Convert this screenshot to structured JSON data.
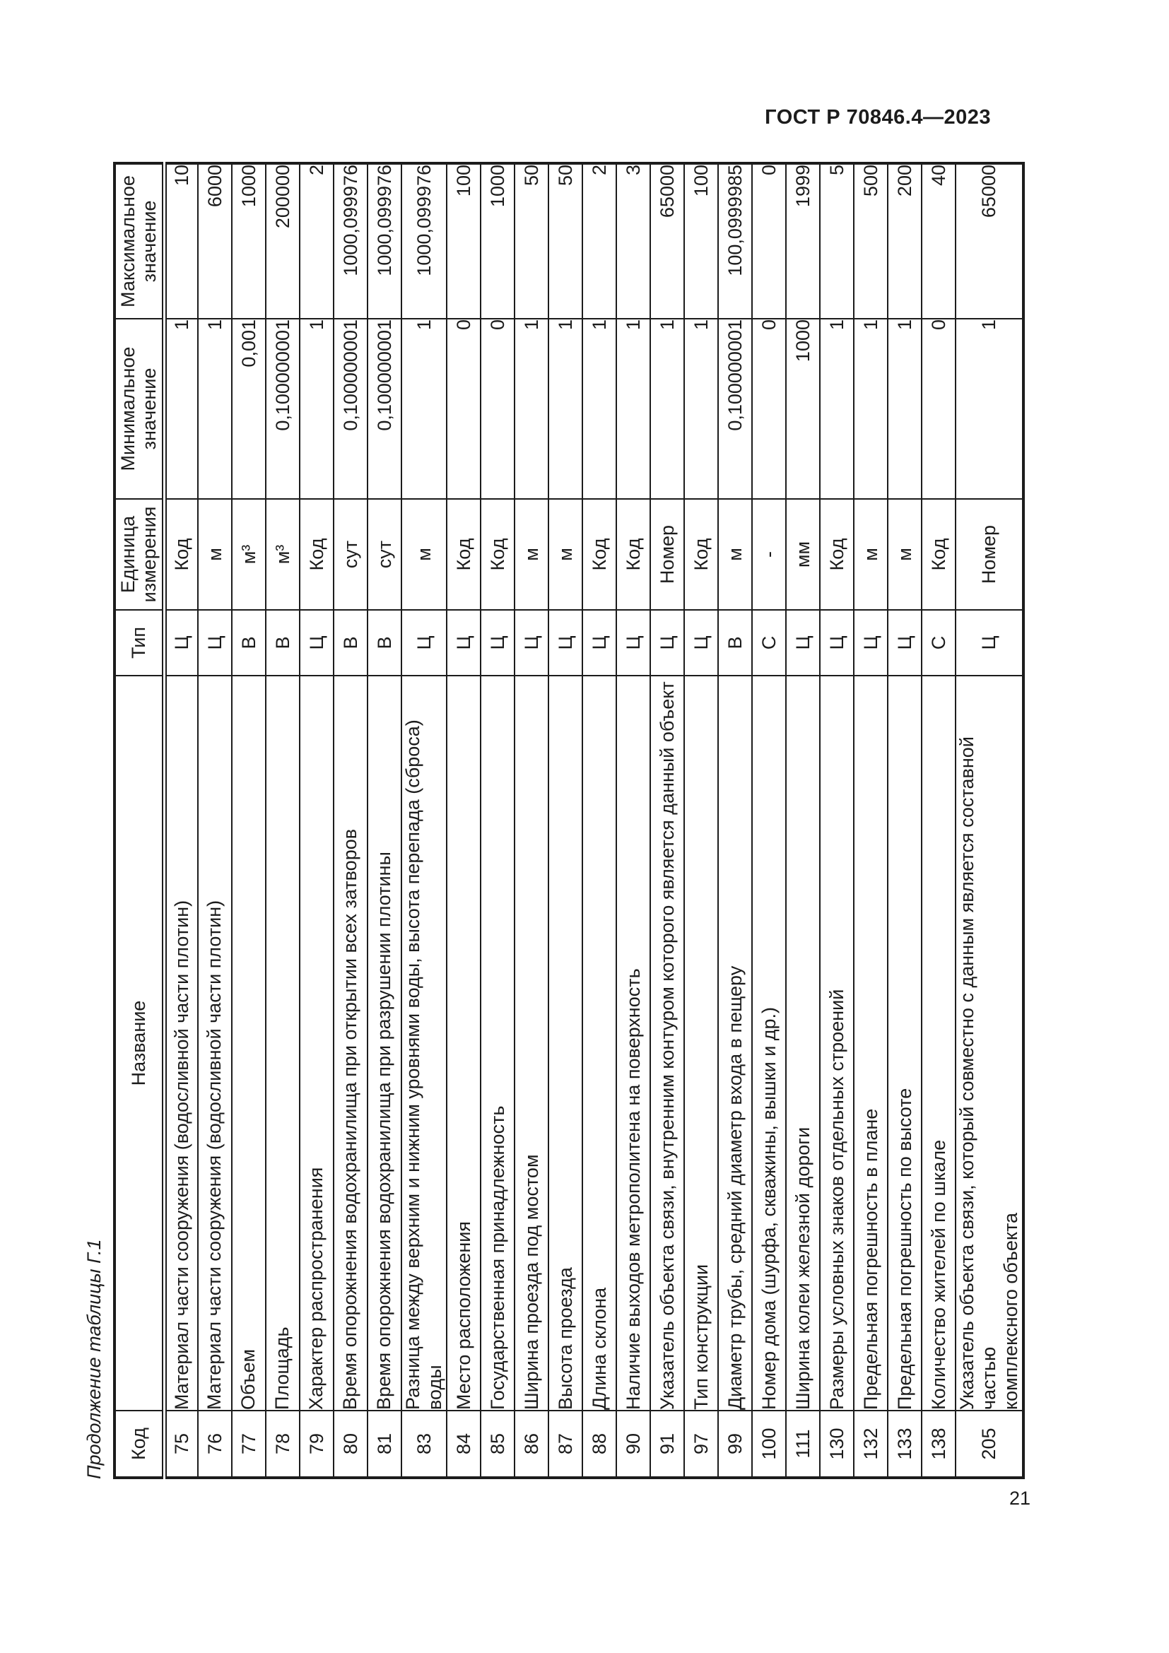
{
  "page": {
    "standard_ref": "ГОСТ Р 70846.4—2023",
    "page_number": "21",
    "table_caption": "Продолжение таблицы Г.1"
  },
  "table": {
    "headers": {
      "code": "Код",
      "name": "Название",
      "type": "Тип",
      "unit": "Единица\nизмерения",
      "min": "Минимальное\nзначение",
      "max": "Максимальное\nзначение"
    },
    "rows": [
      {
        "code": "75",
        "name": "Материал части сооружения (водосливной части плотин)",
        "type": "Ц",
        "unit": "Код",
        "min": "1",
        "max": "10"
      },
      {
        "code": "76",
        "name": "Материал части сооружения (водосливной части плотин)",
        "type": "Ц",
        "unit": "м",
        "min": "1",
        "max": "6000"
      },
      {
        "code": "77",
        "name": "Объем",
        "type": "В",
        "unit": "м³",
        "min": "0,001",
        "max": "1000"
      },
      {
        "code": "78",
        "name": "Площадь",
        "type": "В",
        "unit": "м³",
        "min": "0,100000001",
        "max": "200000"
      },
      {
        "code": "79",
        "name": "Характер распространения",
        "type": "Ц",
        "unit": "Код",
        "min": "1",
        "max": "2"
      },
      {
        "code": "80",
        "name": "Время опорожнения водохранилища при открытии всех затворов",
        "type": "В",
        "unit": "сут",
        "min": "0,100000001",
        "max": "1000,099976"
      },
      {
        "code": "81",
        "name": "Время опорожнения водохранилища при разрушении плотины",
        "type": "В",
        "unit": "сут",
        "min": "0,100000001",
        "max": "1000,099976"
      },
      {
        "code": "83",
        "name": "Разница между верхним и нижним уровнями воды, высота перепада (сброса) воды",
        "type": "Ц",
        "unit": "м",
        "min": "1",
        "max": "1000,099976"
      },
      {
        "code": "84",
        "name": "Место расположения",
        "type": "Ц",
        "unit": "Код",
        "min": "0",
        "max": "100"
      },
      {
        "code": "85",
        "name": "Государственная принадлежность",
        "type": "Ц",
        "unit": "Код",
        "min": "0",
        "max": "1000"
      },
      {
        "code": "86",
        "name": "Ширина проезда под мостом",
        "type": "Ц",
        "unit": "м",
        "min": "1",
        "max": "50"
      },
      {
        "code": "87",
        "name": "Высота проезда",
        "type": "Ц",
        "unit": "м",
        "min": "1",
        "max": "50"
      },
      {
        "code": "88",
        "name": "Длина склона",
        "type": "Ц",
        "unit": "Код",
        "min": "1",
        "max": "2"
      },
      {
        "code": "90",
        "name": "Наличие выходов метрополитена на поверхность",
        "type": "Ц",
        "unit": "Код",
        "min": "1",
        "max": "3"
      },
      {
        "code": "91",
        "name": "Указатель объекта связи, внутренним контуром которого является данный объект",
        "type": "Ц",
        "unit": "Номер",
        "min": "1",
        "max": "65000"
      },
      {
        "code": "97",
        "name": "Тип конструкции",
        "type": "Ц",
        "unit": "Код",
        "min": "1",
        "max": "100"
      },
      {
        "code": "99",
        "name": "Диаметр трубы, средний диаметр входа в пещеру",
        "type": "В",
        "unit": "м",
        "min": "0,100000001",
        "max": "100,0999985"
      },
      {
        "code": "100",
        "name": "Номер дома (шурфа, скважины, вышки и др.)",
        "type": "С",
        "unit": "-",
        "min": "0",
        "max": "0"
      },
      {
        "code": "111",
        "name": "Ширина колеи железной дороги",
        "type": "Ц",
        "unit": "мм",
        "min": "1000",
        "max": "1999"
      },
      {
        "code": "130",
        "name": "Размеры условных знаков отдельных строений",
        "type": "Ц",
        "unit": "Код",
        "min": "1",
        "max": "5"
      },
      {
        "code": "132",
        "name": "Предельная погрешность в плане",
        "type": "Ц",
        "unit": "м",
        "min": "1",
        "max": "500"
      },
      {
        "code": "133",
        "name": "Предельная погрешность по высоте",
        "type": "Ц",
        "unit": "м",
        "min": "1",
        "max": "200"
      },
      {
        "code": "138",
        "name": "Количество жителей по шкале",
        "type": "С",
        "unit": "Код",
        "min": "0",
        "max": "40"
      },
      {
        "code": "205",
        "name": "Указатель объекта связи, который совместно с данным является составной частью\nкомплексного объекта",
        "type": "Ц",
        "unit": "Номер",
        "min": "1",
        "max": "65000"
      }
    ]
  }
}
